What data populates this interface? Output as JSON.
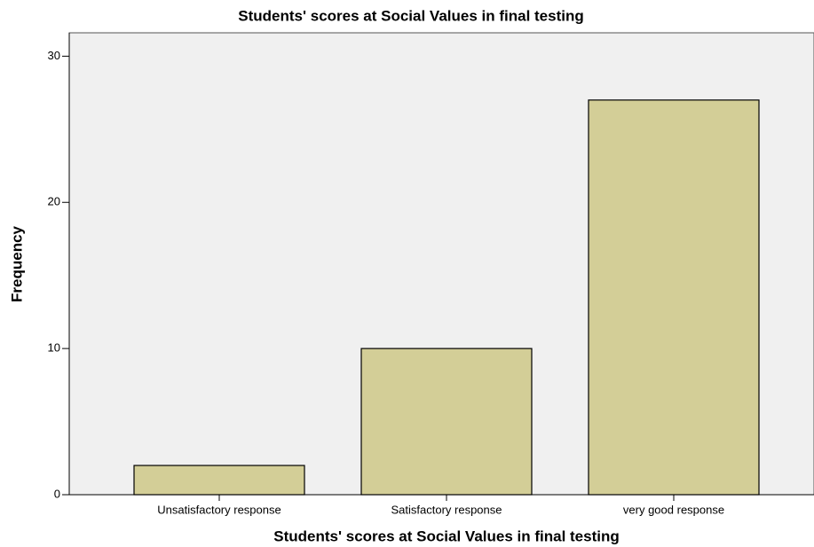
{
  "chart_data": {
    "type": "bar",
    "title": "Students' scores at Social Values in final testing",
    "x_label": "Students' scores at Social Values in final testing",
    "y_label": "Frequency",
    "categories": [
      "Unsatisfactory response",
      "Satisfactory response",
      "very good response"
    ],
    "values": [
      2,
      10,
      27
    ],
    "color": "#d3ce97",
    "ylim": [
      0,
      31.6
    ],
    "yticks": [
      0,
      10,
      20,
      30
    ],
    "grid": false
  }
}
